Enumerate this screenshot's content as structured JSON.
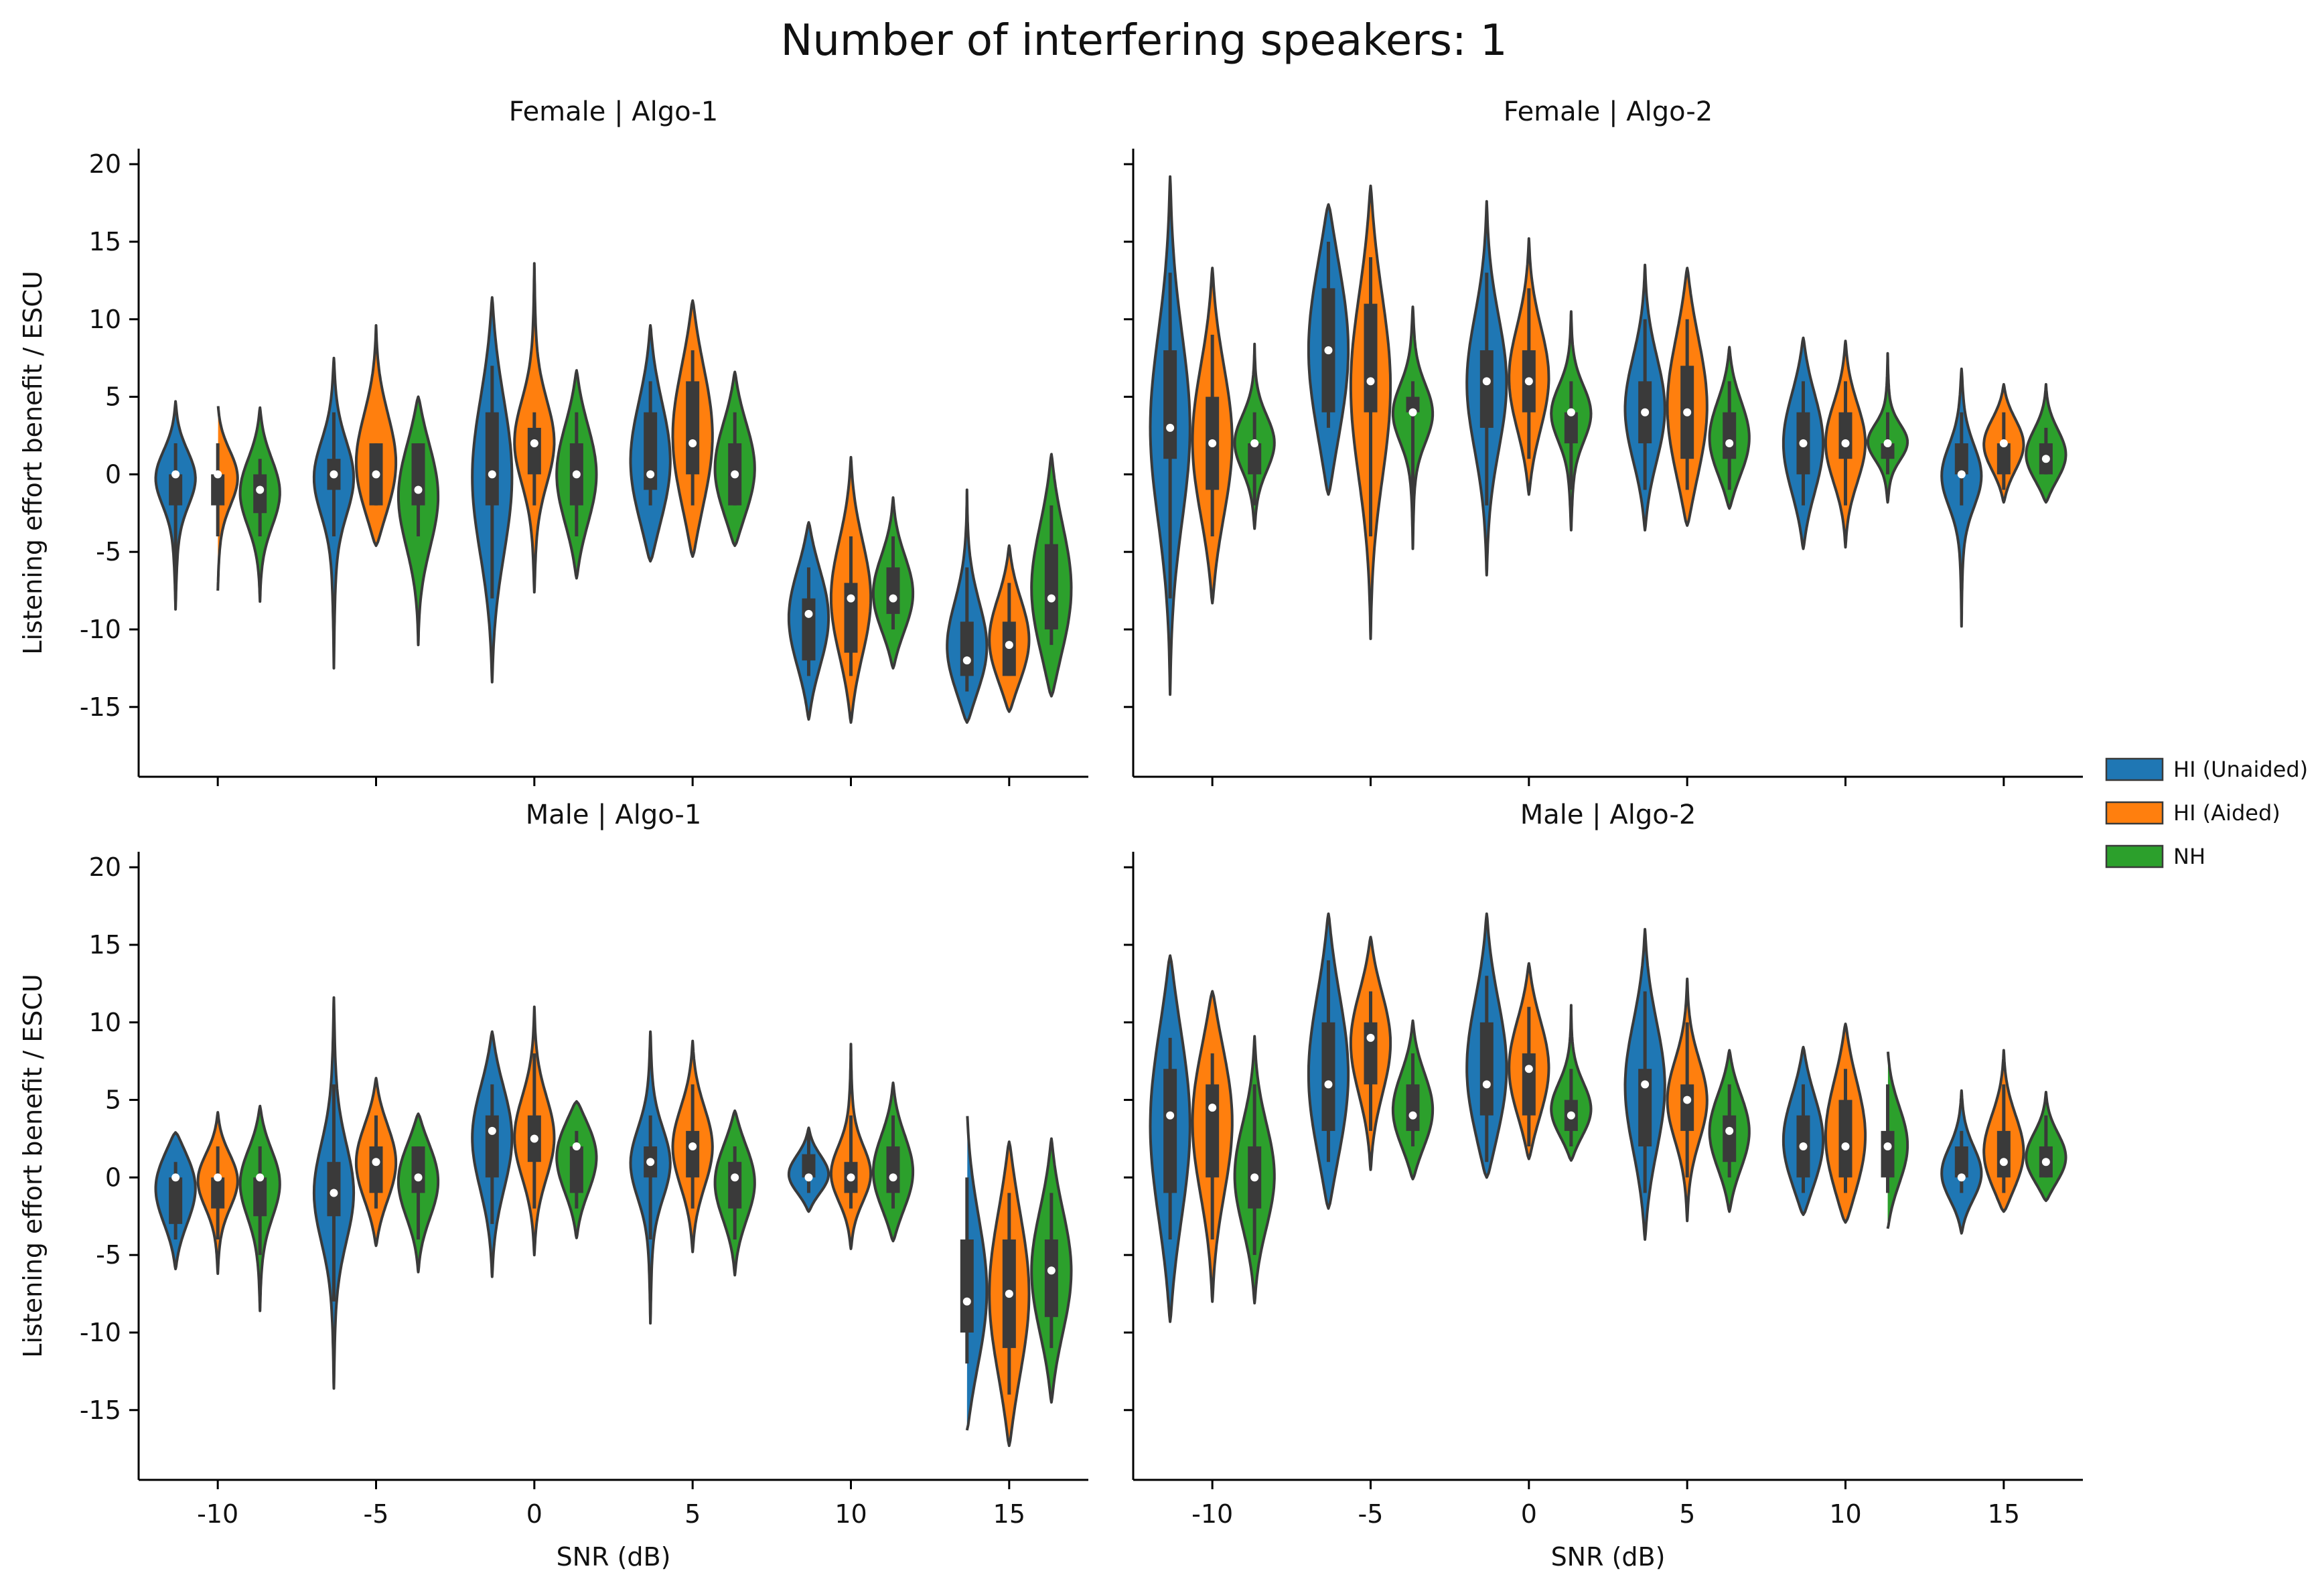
{
  "figure": {
    "suptitle": "Number of interfering speakers: 1",
    "legend": {
      "placement": "right",
      "entries": [
        {
          "label": "HI (Unaided)",
          "color": "#1f77b4"
        },
        {
          "label": "HI (Aided)",
          "color": "#ff7f0e"
        },
        {
          "label": "NH",
          "color": "#2ca02c"
        }
      ]
    }
  },
  "chart_data": [
    {
      "type": "violin",
      "title": "Female | Algo-1",
      "xlabel": "",
      "ylabel": "Listening effort benefit / ESCU",
      "categories": [
        "-10",
        "-5",
        "0",
        "5",
        "10",
        "15"
      ],
      "ylim": [
        -19.5,
        21
      ],
      "yticks": [
        -15,
        -10,
        -5,
        0,
        5,
        10,
        15,
        20
      ],
      "series": [
        {
          "name": "HI (Unaided)",
          "color": "#1f77b4",
          "groups": [
            {
              "min": -8.7,
              "max": 4.7,
              "q1": -2,
              "median": 0,
              "q3": 0,
              "wlo": -6,
              "whi": 2
            },
            {
              "min": -12.5,
              "max": 7.5,
              "q1": -1,
              "median": 0,
              "q3": 1,
              "wlo": -4,
              "whi": 4
            },
            {
              "min": -13.4,
              "max": 11.4,
              "q1": -2,
              "median": 0,
              "q3": 4,
              "wlo": -8,
              "whi": 7
            },
            {
              "min": -5.6,
              "max": 9.6,
              "q1": -1,
              "median": 0,
              "q3": 4,
              "wlo": -2,
              "whi": 6
            },
            {
              "min": -15.8,
              "max": -3.1,
              "q1": -12,
              "median": -9,
              "q3": -8,
              "wlo": -13,
              "whi": -6
            },
            {
              "min": -16,
              "max": -1,
              "q1": -13,
              "median": -12,
              "q3": -9.5,
              "wlo": -14,
              "whi": -6
            }
          ]
        },
        {
          "name": "HI (Aided)",
          "color": "#ff7f0e",
          "groups": [
            {
              "min": -7.5,
              "max": 4.6,
              "q1": -2,
              "median": 0,
              "q3": 0,
              "wlo": -4,
              "whi": 2
            },
            {
              "min": -4.6,
              "max": 9.6,
              "q1": -2,
              "median": 0,
              "q3": 2,
              "wlo": -2,
              "whi": 2
            },
            {
              "min": -7.6,
              "max": 13.6,
              "q1": 0,
              "median": 2,
              "q3": 3,
              "wlo": -2,
              "whi": 4
            },
            {
              "min": -5.3,
              "max": 11.2,
              "q1": 0,
              "median": 2,
              "q3": 6,
              "wlo": -2,
              "whi": 8
            },
            {
              "min": -16,
              "max": 1.1,
              "q1": -11.5,
              "median": -8,
              "q3": -7,
              "wlo": -13,
              "whi": -4
            },
            {
              "min": -15.3,
              "max": -4.6,
              "q1": -13,
              "median": -11,
              "q3": -9.5,
              "wlo": -13,
              "whi": -7
            }
          ]
        },
        {
          "name": "NH",
          "color": "#2ca02c",
          "groups": [
            {
              "min": -8.2,
              "max": 4.3,
              "q1": -2.5,
              "median": -1,
              "q3": 0,
              "wlo": -4,
              "whi": 1
            },
            {
              "min": -11,
              "max": 5,
              "q1": -2,
              "median": -1,
              "q3": 2,
              "wlo": -4,
              "whi": 2
            },
            {
              "min": -6.7,
              "max": 6.7,
              "q1": -2,
              "median": 0,
              "q3": 2,
              "wlo": -4,
              "whi": 4
            },
            {
              "min": -4.6,
              "max": 6.6,
              "q1": -2,
              "median": 0,
              "q3": 2,
              "wlo": -2,
              "whi": 4
            },
            {
              "min": -12.5,
              "max": -1.5,
              "q1": -9,
              "median": -8,
              "q3": -6,
              "wlo": -10,
              "whi": -4
            },
            {
              "min": -14.3,
              "max": 1.3,
              "q1": -10,
              "median": -8,
              "q3": -4.5,
              "wlo": -11,
              "whi": -2
            }
          ]
        }
      ]
    },
    {
      "type": "violin",
      "title": "Female | Algo-2",
      "xlabel": "",
      "ylabel": "",
      "categories": [
        "-10",
        "-5",
        "0",
        "5",
        "10",
        "15"
      ],
      "ylim": [
        -19.5,
        21
      ],
      "yticks": [
        -15,
        -10,
        -5,
        0,
        5,
        10,
        15,
        20
      ],
      "series": [
        {
          "name": "HI (Unaided)",
          "color": "#1f77b4",
          "groups": [
            {
              "min": -14.2,
              "max": 19.2,
              "q1": 1,
              "median": 3,
              "q3": 8,
              "wlo": -8,
              "whi": 13
            },
            {
              "min": -1.3,
              "max": 17.4,
              "q1": 4,
              "median": 8,
              "q3": 12,
              "wlo": 3,
              "whi": 15
            },
            {
              "min": -6.5,
              "max": 17.6,
              "q1": 3,
              "median": 6,
              "q3": 8,
              "wlo": -2,
              "whi": 13
            },
            {
              "min": -3.6,
              "max": 13.5,
              "q1": 2,
              "median": 4,
              "q3": 6,
              "wlo": -1,
              "whi": 10
            },
            {
              "min": -4.8,
              "max": 8.8,
              "q1": 0,
              "median": 2,
              "q3": 4,
              "wlo": -2,
              "whi": 6
            },
            {
              "min": -9.8,
              "max": 6.8,
              "q1": 0,
              "median": 0,
              "q3": 2,
              "wlo": -2,
              "whi": 4
            }
          ]
        },
        {
          "name": "HI (Aided)",
          "color": "#ff7f0e",
          "groups": [
            {
              "min": -8.3,
              "max": 13.3,
              "q1": -1,
              "median": 2,
              "q3": 5,
              "wlo": -4,
              "whi": 9
            },
            {
              "min": -10.6,
              "max": 18.6,
              "q1": 4,
              "median": 6,
              "q3": 11,
              "wlo": -4,
              "whi": 14
            },
            {
              "min": -1.3,
              "max": 15.2,
              "q1": 4,
              "median": 6,
              "q3": 8,
              "wlo": 1,
              "whi": 12
            },
            {
              "min": -3.3,
              "max": 13.3,
              "q1": 1,
              "median": 4,
              "q3": 7,
              "wlo": -1,
              "whi": 10
            },
            {
              "min": -4.7,
              "max": 8.6,
              "q1": 1,
              "median": 2,
              "q3": 4,
              "wlo": -2,
              "whi": 6
            },
            {
              "min": -1.8,
              "max": 5.8,
              "q1": 0,
              "median": 2,
              "q3": 2,
              "wlo": -1,
              "whi": 4
            }
          ]
        },
        {
          "name": "NH",
          "color": "#2ca02c",
          "groups": [
            {
              "min": -3.5,
              "max": 8.4,
              "q1": 0,
              "median": 2,
              "q3": 2,
              "wlo": -2,
              "whi": 4
            },
            {
              "min": -4.8,
              "max": 10.8,
              "q1": 4,
              "median": 4,
              "q3": 5,
              "wlo": -2,
              "whi": 6
            },
            {
              "min": -3.6,
              "max": 10.5,
              "q1": 2,
              "median": 4,
              "q3": 4,
              "wlo": -1,
              "whi": 6
            },
            {
              "min": -2.2,
              "max": 8.2,
              "q1": 1,
              "median": 2,
              "q3": 4,
              "wlo": -1,
              "whi": 6
            },
            {
              "min": -1.8,
              "max": 7.8,
              "q1": 1,
              "median": 2,
              "q3": 2,
              "wlo": 0,
              "whi": 4
            },
            {
              "min": -1.8,
              "max": 5.8,
              "q1": 0,
              "median": 1,
              "q3": 2,
              "wlo": 0,
              "whi": 3
            }
          ]
        }
      ]
    },
    {
      "type": "violin",
      "title": "Male | Algo-1",
      "xlabel": "SNR (dB)",
      "ylabel": "Listening effort benefit / ESCU",
      "categories": [
        "-10",
        "-5",
        "0",
        "5",
        "10",
        "15"
      ],
      "ylim": [
        -19.5,
        21
      ],
      "yticks": [
        -15,
        -10,
        -5,
        0,
        5,
        10,
        15,
        20
      ],
      "series": [
        {
          "name": "HI (Unaided)",
          "color": "#1f77b4",
          "groups": [
            {
              "min": -5.9,
              "max": 2.9,
              "q1": -3,
              "median": 0,
              "q3": 0,
              "wlo": -4,
              "whi": 1
            },
            {
              "min": -13.6,
              "max": 11.6,
              "q1": -2.5,
              "median": -1,
              "q3": 1,
              "wlo": -8,
              "whi": 6
            },
            {
              "min": -6.4,
              "max": 9.4,
              "q1": 0,
              "median": 3,
              "q3": 4,
              "wlo": -3,
              "whi": 6
            },
            {
              "min": -9.4,
              "max": 9.4,
              "q1": 0,
              "median": 1,
              "q3": 2,
              "wlo": -4,
              "whi": 4
            },
            {
              "min": -2.2,
              "max": 3.2,
              "q1": 0,
              "median": 0,
              "q3": 1.5,
              "wlo": -1,
              "whi": 3
            },
            {
              "min": -16.3,
              "max": 4.3,
              "q1": -10,
              "median": -8,
              "q3": -4,
              "wlo": -12,
              "whi": 0
            }
          ]
        },
        {
          "name": "HI (Aided)",
          "color": "#ff7f0e",
          "groups": [
            {
              "min": -6.2,
              "max": 4.2,
              "q1": -2,
              "median": 0,
              "q3": 0,
              "wlo": -4,
              "whi": 2
            },
            {
              "min": -4.4,
              "max": 6.4,
              "q1": -1,
              "median": 1,
              "q3": 2,
              "wlo": -2,
              "whi": 4
            },
            {
              "min": -5,
              "max": 11,
              "q1": 1,
              "median": 2.5,
              "q3": 4,
              "wlo": -2,
              "whi": 8
            },
            {
              "min": -4.8,
              "max": 8.8,
              "q1": 0,
              "median": 2,
              "q3": 3,
              "wlo": -2,
              "whi": 6
            },
            {
              "min": -4.6,
              "max": 8.6,
              "q1": -1,
              "median": 0,
              "q3": 1,
              "wlo": -2,
              "whi": 4
            },
            {
              "min": -17.3,
              "max": 2.3,
              "q1": -11,
              "median": -7.5,
              "q3": -4,
              "wlo": -14,
              "whi": -1
            }
          ]
        },
        {
          "name": "NH",
          "color": "#2ca02c",
          "groups": [
            {
              "min": -8.6,
              "max": 4.6,
              "q1": -2.5,
              "median": 0,
              "q3": 0,
              "wlo": -5,
              "whi": 2
            },
            {
              "min": -6.1,
              "max": 4.1,
              "q1": -1,
              "median": 0,
              "q3": 2,
              "wlo": -4,
              "whi": 2
            },
            {
              "min": -3.9,
              "max": 4.9,
              "q1": -1,
              "median": 2,
              "q3": 2,
              "wlo": -2,
              "whi": 3
            },
            {
              "min": -6.3,
              "max": 4.3,
              "q1": -2,
              "median": 0,
              "q3": 1,
              "wlo": -4,
              "whi": 2
            },
            {
              "min": -4.1,
              "max": 6.1,
              "q1": -1,
              "median": 0,
              "q3": 2,
              "wlo": -2,
              "whi": 4
            },
            {
              "min": -14.5,
              "max": 2.5,
              "q1": -9,
              "median": -6,
              "q3": -4,
              "wlo": -11,
              "whi": -1
            }
          ]
        }
      ]
    },
    {
      "type": "violin",
      "title": "Male | Algo-2",
      "xlabel": "SNR (dB)",
      "ylabel": "",
      "categories": [
        "-10",
        "-5",
        "0",
        "5",
        "10",
        "15"
      ],
      "ylim": [
        -19.5,
        21
      ],
      "yticks": [
        -15,
        -10,
        -5,
        0,
        5,
        10,
        15,
        20
      ],
      "series": [
        {
          "name": "HI (Unaided)",
          "color": "#1f77b4",
          "groups": [
            {
              "min": -9.3,
              "max": 14.3,
              "q1": -1,
              "median": 4,
              "q3": 7,
              "wlo": -4,
              "whi": 9
            },
            {
              "min": -2,
              "max": 17,
              "q1": 3,
              "median": 6,
              "q3": 10,
              "wlo": 1,
              "whi": 14
            },
            {
              "min": 0,
              "max": 17,
              "q1": 4,
              "median": 6,
              "q3": 10,
              "wlo": 1,
              "whi": 13
            },
            {
              "min": -4,
              "max": 16,
              "q1": 2,
              "median": 6,
              "q3": 7,
              "wlo": -1,
              "whi": 12
            },
            {
              "min": -2.4,
              "max": 8.4,
              "q1": 0,
              "median": 2,
              "q3": 4,
              "wlo": -1,
              "whi": 6
            },
            {
              "min": -3.6,
              "max": 5.6,
              "q1": 0,
              "median": 0,
              "q3": 2,
              "wlo": -1,
              "whi": 3
            }
          ]
        },
        {
          "name": "HI (Aided)",
          "color": "#ff7f0e",
          "groups": [
            {
              "min": -8,
              "max": 12,
              "q1": 0,
              "median": 4.5,
              "q3": 6,
              "wlo": -4,
              "whi": 8
            },
            {
              "min": 0.5,
              "max": 15.5,
              "q1": 6,
              "median": 9,
              "q3": 10,
              "wlo": 3,
              "whi": 12
            },
            {
              "min": 1.2,
              "max": 13.8,
              "q1": 4,
              "median": 7,
              "q3": 8,
              "wlo": 2,
              "whi": 11
            },
            {
              "min": -2.8,
              "max": 12.8,
              "q1": 3,
              "median": 5,
              "q3": 6,
              "wlo": 0,
              "whi": 10
            },
            {
              "min": -2.9,
              "max": 9.9,
              "q1": 0,
              "median": 2,
              "q3": 5,
              "wlo": -1,
              "whi": 7
            },
            {
              "min": -2.2,
              "max": 8.2,
              "q1": 0,
              "median": 1,
              "q3": 3,
              "wlo": -1,
              "whi": 6
            }
          ]
        },
        {
          "name": "NH",
          "color": "#2ca02c",
          "groups": [
            {
              "min": -8.1,
              "max": 9.1,
              "q1": -2,
              "median": 0,
              "q3": 2,
              "wlo": -5,
              "whi": 6
            },
            {
              "min": -0.1,
              "max": 10.1,
              "q1": 3,
              "median": 4,
              "q3": 6,
              "wlo": 2,
              "whi": 8
            },
            {
              "min": 1.1,
              "max": 11.1,
              "q1": 3,
              "median": 4,
              "q3": 5,
              "wlo": 2,
              "whi": 7
            },
            {
              "min": -2.2,
              "max": 8.2,
              "q1": 1,
              "median": 3,
              "q3": 4,
              "wlo": 0,
              "whi": 6
            },
            {
              "min": -3.3,
              "max": 8.3,
              "q1": 0,
              "median": 2,
              "q3": 3,
              "wlo": -1,
              "whi": 6
            },
            {
              "min": -1.5,
              "max": 5.5,
              "q1": 0,
              "median": 1,
              "q3": 2,
              "wlo": 0,
              "whi": 4
            }
          ]
        }
      ]
    }
  ]
}
